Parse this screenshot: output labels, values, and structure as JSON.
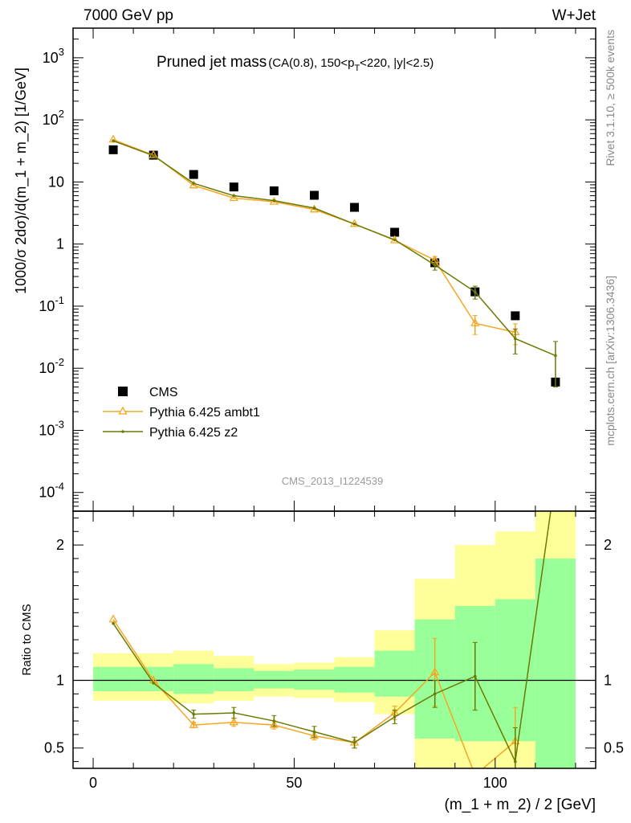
{
  "header": {
    "left": "7000 GeV pp",
    "right": "W+Jet"
  },
  "side_labels": {
    "top": "Rivet 3.1.10, ≥ 500k events",
    "bottom": "mcplots.cern.ch [arXiv:1306.3436]"
  },
  "analysis_id": "CMS_2013_I1224539",
  "chart_data": [
    {
      "type": "scatter",
      "panel": "main",
      "title": "Pruned jet mass",
      "title_detail": "(CA(0.8), 150<p_T<220, |y|<2.5)",
      "ylabel": "1000/σ 2dσ)/d(m_1 + m_2) [1/GeV]",
      "yscale": "log",
      "ylim": [
        5e-05,
        3000
      ],
      "xlim": [
        -5,
        125
      ],
      "yticks": [
        {
          "value": 0.0001,
          "base": "10",
          "exp": "-4"
        },
        {
          "value": 0.001,
          "base": "10",
          "exp": "-3"
        },
        {
          "value": 0.01,
          "base": "10",
          "exp": "-2"
        },
        {
          "value": 0.1,
          "base": "10",
          "exp": "-1"
        },
        {
          "value": 1,
          "base": "1",
          "exp": ""
        },
        {
          "value": 10,
          "base": "10",
          "exp": ""
        },
        {
          "value": 100,
          "base": "10",
          "exp": "2"
        },
        {
          "value": 1000,
          "base": "10",
          "exp": "3"
        }
      ],
      "legend": [
        {
          "label": "CMS",
          "marker": "square",
          "color": "#000000"
        },
        {
          "label": "Pythia 6.425 ambt1",
          "marker": "triangle",
          "color": "#f5a623"
        },
        {
          "label": "Pythia 6.425 z2",
          "marker": "dot",
          "color": "#6b7a00"
        }
      ],
      "x": [
        5,
        15,
        25,
        35,
        45,
        55,
        65,
        75,
        85,
        95,
        105,
        115
      ],
      "series": [
        {
          "name": "CMS",
          "color": "#000000",
          "values": [
            33,
            27,
            13.2,
            8.3,
            7.2,
            6.1,
            3.9,
            1.55,
            0.5,
            0.17,
            0.07,
            0.006
          ]
        },
        {
          "name": "Pythia 6.425 ambt1",
          "color": "#f5a623",
          "values": [
            48,
            27,
            8.8,
            5.5,
            4.8,
            3.6,
            2.1,
            1.15,
            0.55,
            0.053,
            0.038,
            null
          ],
          "err": [
            0,
            0,
            0,
            0,
            0,
            0,
            0,
            0,
            0.08,
            0.018,
            0.014,
            0
          ]
        },
        {
          "name": "Pythia 6.425 z2",
          "color": "#6b7a00",
          "values": [
            46,
            26.5,
            9.5,
            6.0,
            5.0,
            3.8,
            2.1,
            1.17,
            0.46,
            0.17,
            0.03,
            0.016
          ],
          "err": [
            0,
            0,
            0,
            0,
            0,
            0,
            0,
            0,
            0.08,
            0.04,
            0.013,
            0.011
          ]
        }
      ]
    },
    {
      "type": "line",
      "panel": "ratio",
      "ylabel": "Ratio to CMS",
      "xlabel": "(m_1 + m_2) / 2 [GeV]",
      "ylim": [
        0.35,
        2.25
      ],
      "xlim": [
        -5,
        125
      ],
      "xticks": [
        0,
        50,
        100
      ],
      "yticks": [
        0.5,
        1,
        2
      ],
      "bands": {
        "x_edges": [
          0,
          10,
          20,
          30,
          40,
          50,
          60,
          70,
          80,
          90,
          100,
          110,
          120
        ],
        "stat_low": [
          0.92,
          0.92,
          0.9,
          0.92,
          0.94,
          0.93,
          0.91,
          0.88,
          0.57,
          0.55,
          0.55,
          0.3
        ],
        "stat_high": [
          1.1,
          1.1,
          1.12,
          1.09,
          1.07,
          1.08,
          1.1,
          1.22,
          1.45,
          1.55,
          1.6,
          1.9
        ],
        "total_low": [
          0.85,
          0.85,
          0.83,
          0.85,
          0.88,
          0.87,
          0.84,
          0.75,
          0.3,
          0.3,
          0.3,
          0.3
        ],
        "total_high": [
          1.2,
          1.2,
          1.22,
          1.18,
          1.12,
          1.13,
          1.17,
          1.37,
          1.75,
          2.0,
          2.1,
          2.3
        ],
        "stat_color": "#99ff99",
        "total_color": "#ffff99"
      },
      "x": [
        5,
        15,
        25,
        35,
        45,
        55,
        65,
        75,
        85,
        95,
        105,
        115
      ],
      "series": [
        {
          "name": "Pythia 6.425 ambt1",
          "color": "#f5a623",
          "values": [
            1.45,
            1.0,
            0.67,
            0.69,
            0.67,
            0.59,
            0.54,
            0.76,
            1.06,
            0.3,
            0.55,
            null
          ],
          "err": [
            0,
            0,
            0.02,
            0.03,
            0.03,
            0.03,
            0.04,
            0.05,
            0.25,
            0,
            0.25,
            0
          ]
        },
        {
          "name": "Pythia 6.425 z2",
          "color": "#6b7a00",
          "values": [
            1.42,
            0.98,
            0.75,
            0.76,
            0.7,
            0.62,
            0.54,
            0.73,
            0.9,
            1.03,
            0.4,
            2.5
          ],
          "err": [
            0,
            0,
            0.03,
            0.04,
            0.04,
            0.04,
            0.04,
            0.05,
            0.1,
            0.25,
            0.25,
            0
          ]
        }
      ]
    }
  ]
}
